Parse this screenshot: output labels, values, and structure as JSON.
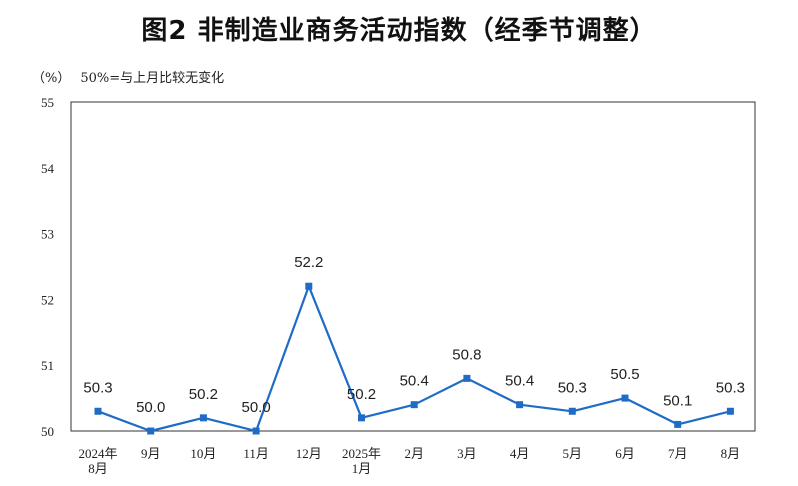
{
  "chart_data": {
    "type": "line",
    "title": "图2 非制造业商务活动指数（经季节调整）",
    "y_unit": "（%）",
    "note": "50%=与上月比较无变化",
    "categories": [
      [
        "2024年",
        "8月"
      ],
      [
        "9月"
      ],
      [
        "10月"
      ],
      [
        "11月"
      ],
      [
        "12月"
      ],
      [
        "2025年",
        "1月"
      ],
      [
        "2月"
      ],
      [
        "3月"
      ],
      [
        "4月"
      ],
      [
        "5月"
      ],
      [
        "6月"
      ],
      [
        "7月"
      ],
      [
        "8月"
      ]
    ],
    "values": [
      50.3,
      50.0,
      50.2,
      50.0,
      52.2,
      50.2,
      50.4,
      50.8,
      50.4,
      50.3,
      50.5,
      50.1,
      50.3
    ],
    "data_labels": [
      "50.3",
      "50.0",
      "50.2",
      "50.0",
      "52.2",
      "50.2",
      "50.4",
      "50.8",
      "50.4",
      "50.3",
      "50.5",
      "50.1",
      "50.3"
    ],
    "ylim": [
      50,
      55
    ],
    "yticks": [
      "50",
      "51",
      "52",
      "53",
      "54",
      "55"
    ],
    "grid": false,
    "line_color": "#1f6cc7",
    "marker": "square"
  }
}
